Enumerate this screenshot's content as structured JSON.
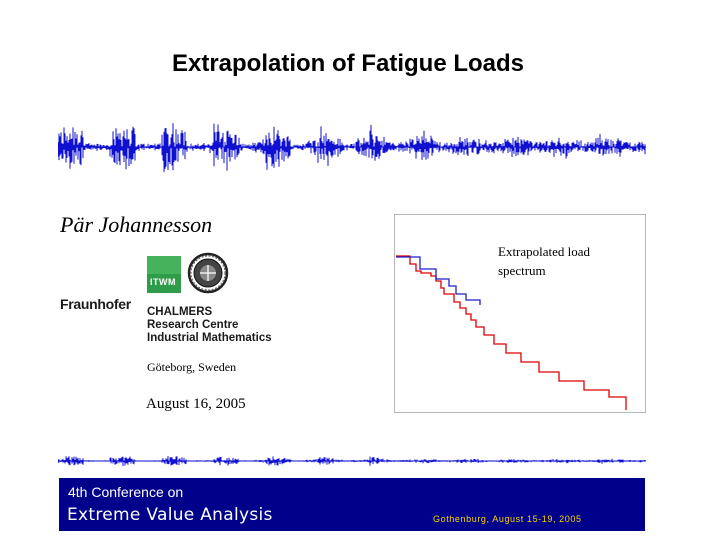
{
  "title": "Extrapolation of Fatigue Loads",
  "author": "Pär Johannesson",
  "logos": {
    "itwm": "ITWM",
    "fraunhofer": "Fraunhofer",
    "chalmers": [
      "CHALMERS",
      "Research Centre",
      "Industrial Mathematics"
    ],
    "seal_icon": "university-seal-icon"
  },
  "location": "Göteborg, Sweden",
  "date": "August 16, 2005",
  "spectrum": {
    "label_line1": "Extrapolated load",
    "label_line2": "spectrum",
    "colors": {
      "extrapolated": "#dd0000",
      "measured": "#1f1fcc"
    }
  },
  "signal": {
    "color": "#1010d0"
  },
  "banner": {
    "line1": "4th Conference on",
    "line2": "Extreme Value Analysis",
    "right": "Gothenburg, August 15-19, 2005",
    "background": "#00008b",
    "accent": "#ffd400"
  }
}
